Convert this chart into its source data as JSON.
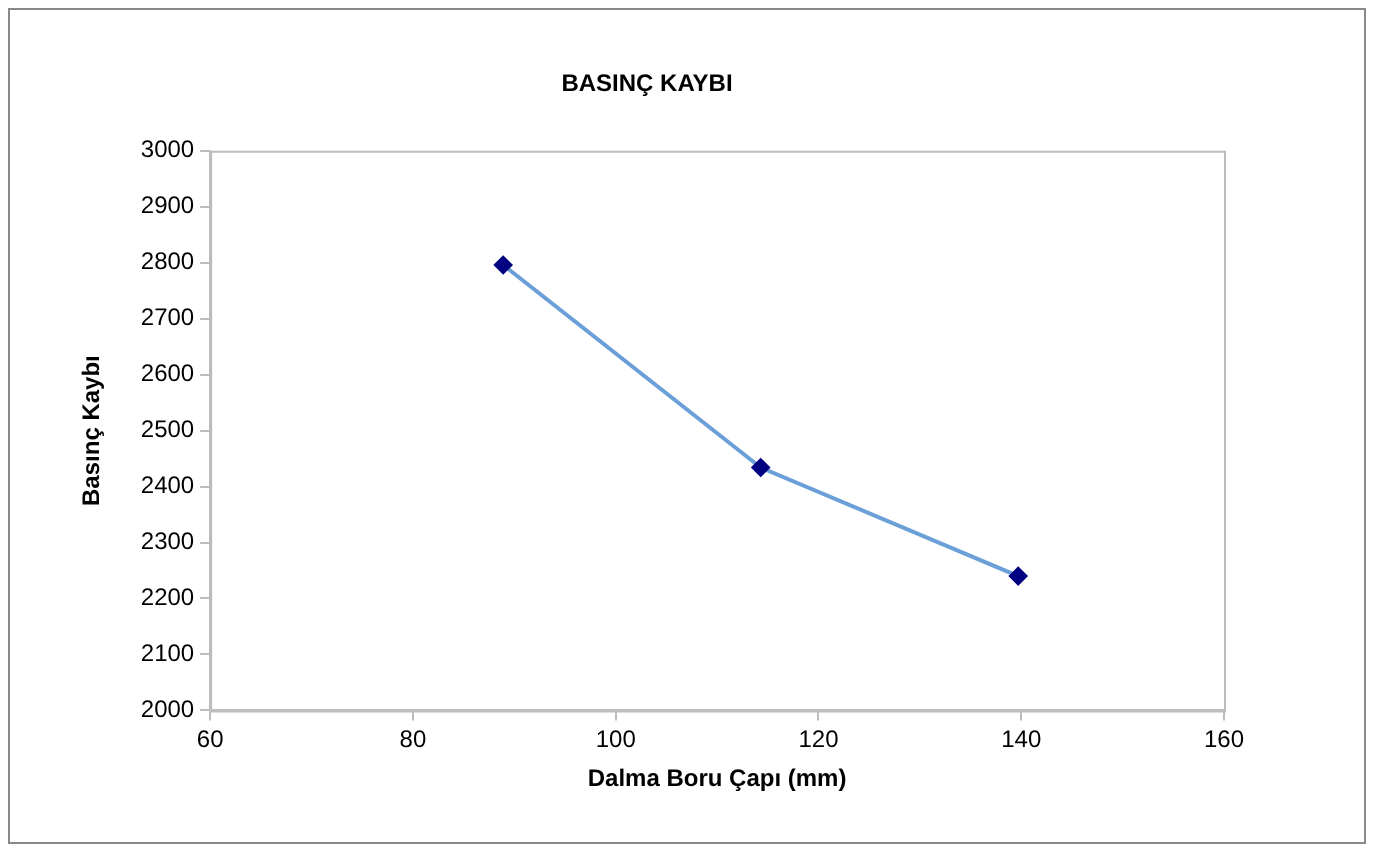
{
  "chart_data": {
    "type": "line",
    "title": "BASINÇ KAYBI",
    "xlabel": "Dalma Boru Çapı (mm)",
    "ylabel": "Basınç Kaybı",
    "x": [
      88.9,
      114.3,
      139.7
    ],
    "series": [
      {
        "color": "#6a9fd8",
        "values": [
          2796,
          2434,
          2240
        ]
      }
    ],
    "marker": "diamond",
    "line_style": "solid",
    "grid": false,
    "legend": false,
    "xlim": [
      60,
      160
    ],
    "xticks": [
      60,
      80,
      100,
      120,
      140,
      160
    ],
    "ylim": [
      2000,
      3000
    ],
    "yticks": [
      2000,
      2100,
      2200,
      2300,
      2400,
      2500,
      2600,
      2700,
      2800,
      2900,
      3000
    ]
  }
}
